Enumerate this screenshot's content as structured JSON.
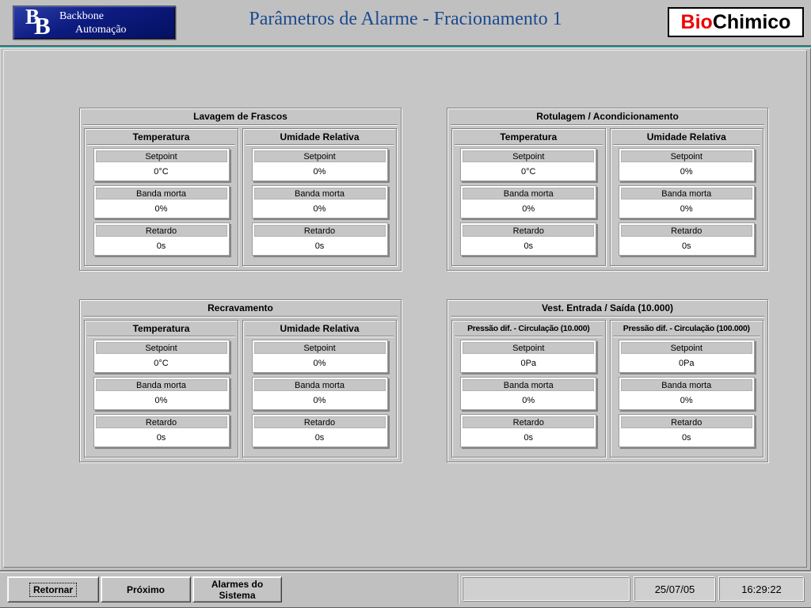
{
  "header": {
    "title": "Parâmetros de Alarme - Fracionamento 1",
    "logo": {
      "monogram_b1": "B",
      "monogram_b2": "B",
      "line1": "Backbone",
      "line2": "Automação"
    },
    "brand": {
      "bio": "Bio",
      "chimico": "Chimico"
    }
  },
  "panels": [
    {
      "title": "Lavagem de Frascos",
      "columns": [
        {
          "title": "Temperatura",
          "fields": [
            {
              "label": "Setpoint",
              "value": "0°C"
            },
            {
              "label": "Banda morta",
              "value": "0%"
            },
            {
              "label": "Retardo",
              "value": "0s"
            }
          ]
        },
        {
          "title": "Umidade Relativa",
          "fields": [
            {
              "label": "Setpoint",
              "value": "0%"
            },
            {
              "label": "Banda morta",
              "value": "0%"
            },
            {
              "label": "Retardo",
              "value": "0s"
            }
          ]
        }
      ]
    },
    {
      "title": "Rotulagem / Acondicionamento",
      "columns": [
        {
          "title": "Temperatura",
          "fields": [
            {
              "label": "Setpoint",
              "value": "0°C"
            },
            {
              "label": "Banda morta",
              "value": "0%"
            },
            {
              "label": "Retardo",
              "value": "0s"
            }
          ]
        },
        {
          "title": "Umidade Relativa",
          "fields": [
            {
              "label": "Setpoint",
              "value": "0%"
            },
            {
              "label": "Banda morta",
              "value": "0%"
            },
            {
              "label": "Retardo",
              "value": "0s"
            }
          ]
        }
      ]
    },
    {
      "title": "Recravamento",
      "columns": [
        {
          "title": "Temperatura",
          "fields": [
            {
              "label": "Setpoint",
              "value": "0°C"
            },
            {
              "label": "Banda morta",
              "value": "0%"
            },
            {
              "label": "Retardo",
              "value": "0s"
            }
          ]
        },
        {
          "title": "Umidade Relativa",
          "fields": [
            {
              "label": "Setpoint",
              "value": "0%"
            },
            {
              "label": "Banda morta",
              "value": "0%"
            },
            {
              "label": "Retardo",
              "value": "0s"
            }
          ]
        }
      ]
    },
    {
      "title": "Vest. Entrada / Saída (10.000)",
      "columns": [
        {
          "title": "Pressão dif. - Circulação (10.000)",
          "fields": [
            {
              "label": "Setpoint",
              "value": "0Pa"
            },
            {
              "label": "Banda morta",
              "value": "0%"
            },
            {
              "label": "Retardo",
              "value": "0s"
            }
          ]
        },
        {
          "title": "Pressão dif. - Circulação (100.000)",
          "fields": [
            {
              "label": "Setpoint",
              "value": "0Pa"
            },
            {
              "label": "Banda morta",
              "value": "0%"
            },
            {
              "label": "Retardo",
              "value": "0s"
            }
          ]
        }
      ]
    }
  ],
  "footer": {
    "buttons": [
      {
        "label": "Retornar"
      },
      {
        "label": "Próximo"
      },
      {
        "label": "Alarmes do Sistema"
      }
    ],
    "date": "25/07/05",
    "time": "16:29:22"
  },
  "colors": {
    "accent_teal": "#2f8e8e",
    "logo_navy": "#0d1b80",
    "title_blue": "#1a4b8e",
    "brand_red": "#ee0000",
    "background": "#c0c0c0"
  }
}
